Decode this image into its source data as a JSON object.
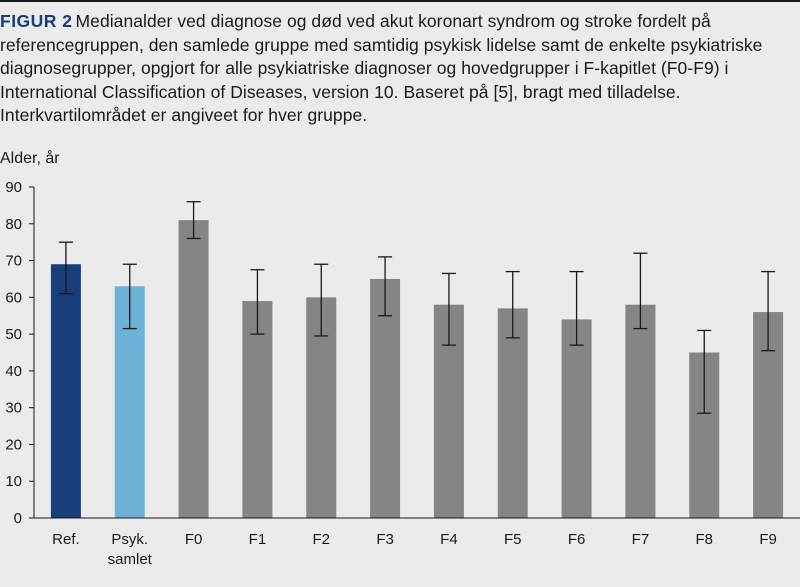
{
  "caption": {
    "label": "FIGUR 2",
    "text": "Medianalder ved diagnose og død ved akut koronart syndrom og stroke fordelt på referencegruppen, den samlede gruppe med samtidig psykisk lidelse samt de enkelte psykiatriske diagnosegrupper, opgjort for alle psykiatriske diagnoser og hovedgrupper i F-kapitlet (F0-F9) i International Classification of Diseases, version 10. Baseret på [5], bragt med tilladelse. Interkvartilområdet er angiveet for hver gruppe."
  },
  "chart_data": {
    "type": "bar",
    "title": "",
    "xlabel": "",
    "ylabel": "Alder, år",
    "ylim": [
      0,
      90
    ],
    "yticks": [
      "0",
      "10",
      "20",
      "30",
      "40",
      "50",
      "60",
      "70",
      "80",
      "90"
    ],
    "categories": [
      [
        "Ref."
      ],
      [
        "Psyk.",
        "samlet"
      ],
      [
        "F0"
      ],
      [
        "F1"
      ],
      [
        "F2"
      ],
      [
        "F3"
      ],
      [
        "F4"
      ],
      [
        "F5"
      ],
      [
        "F6"
      ],
      [
        "F7"
      ],
      [
        "F8"
      ],
      [
        "F9"
      ]
    ],
    "values": [
      69,
      63,
      81,
      59,
      60,
      65,
      58,
      57,
      54,
      58,
      45,
      56
    ],
    "iqr_low": [
      61,
      51.5,
      76,
      50,
      49.5,
      55,
      47,
      49,
      47,
      51.5,
      28.5,
      45.5
    ],
    "iqr_high": [
      75,
      69,
      86,
      67.5,
      69,
      71,
      66.5,
      67,
      67,
      72,
      51,
      67
    ],
    "colors": [
      "#183e79",
      "#6db1d6",
      "#858585",
      "#858585",
      "#858585",
      "#858585",
      "#858585",
      "#858585",
      "#858585",
      "#858585",
      "#858585",
      "#858585"
    ],
    "grid": false,
    "legend": "none"
  }
}
